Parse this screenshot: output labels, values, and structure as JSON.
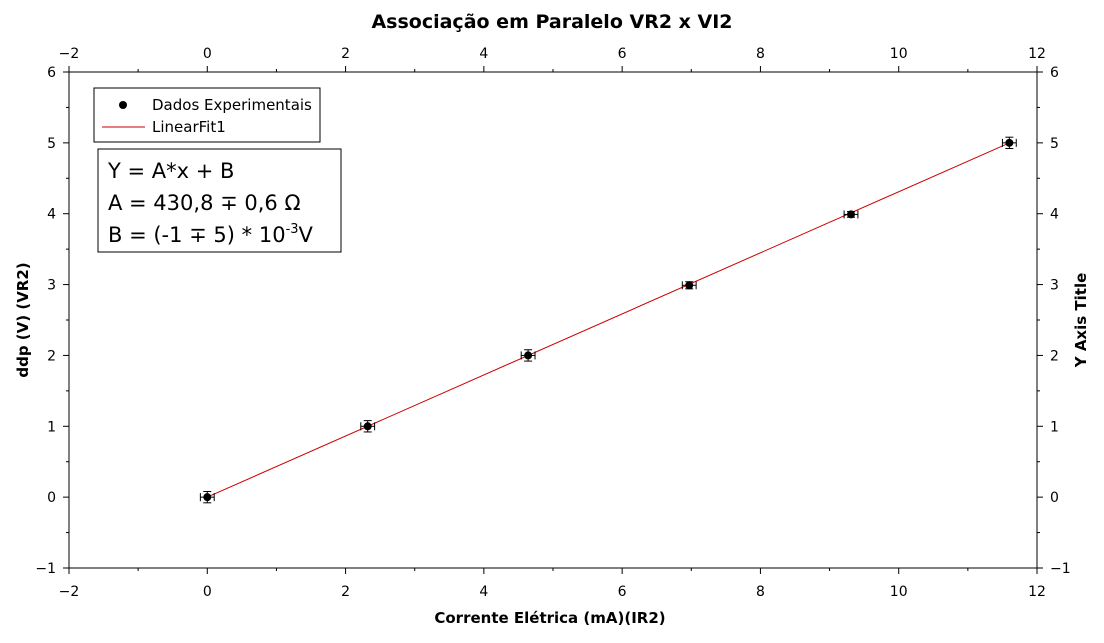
{
  "chart_data": {
    "type": "scatter",
    "title": "Associação em Paralelo VR2 x VI2",
    "xlabel": "Corrente Elétrica (mA)(IR2)",
    "ylabel": "ddp (V) (VR2)",
    "ylabel_right": "Y Axis Title",
    "xlim": [
      -2,
      12
    ],
    "ylim": [
      -1,
      6
    ],
    "xticks": [
      "−2",
      "0",
      "2",
      "4",
      "6",
      "8",
      "10",
      "12"
    ],
    "yticks": [
      "−1",
      "0",
      "1",
      "2",
      "3",
      "4",
      "5",
      "6"
    ],
    "grid": false,
    "legend_position": "top-left",
    "series": [
      {
        "name": "Dados Experimentais",
        "style": "markers",
        "color": "#000000",
        "x": [
          0.0,
          2.32,
          4.64,
          6.97,
          9.31,
          11.6
        ],
        "y": [
          0.0,
          1.0,
          2.0,
          2.99,
          3.99,
          5.0
        ],
        "xerr": [
          0.1,
          0.1,
          0.1,
          0.1,
          0.1,
          0.1
        ],
        "yerr": [
          0.08,
          0.08,
          0.08,
          0.05,
          0.04,
          0.08
        ]
      },
      {
        "name": "LinearFit1",
        "style": "line",
        "color": "#cc0000",
        "x": [
          0.0,
          11.6
        ],
        "y": [
          0.0,
          5.0
        ]
      }
    ],
    "annotation": {
      "line1": "Y = A*x + B",
      "line2": "A = 430,8 ∓ 0,6 Ω",
      "line3_pre": "B = (-1 ∓ 5) * 10",
      "line3_sup": "-3",
      "line3_post": "V"
    }
  }
}
